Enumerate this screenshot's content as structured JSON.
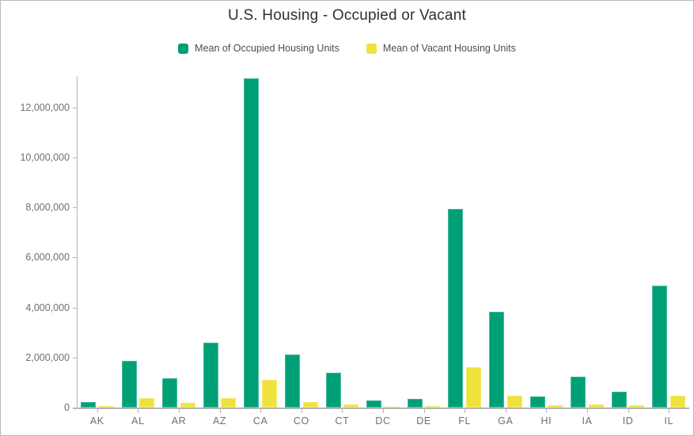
{
  "title": "U.S. Housing - Occupied or Vacant",
  "colors": {
    "occupied": "#00a077",
    "vacant": "#efe23d",
    "axis": "#b5b5b5",
    "tick_label": "#6f6f6f",
    "title_text": "#2f2f2f",
    "legend_text": "#4c4c4c",
    "background": "#ffffff",
    "border": "#b4babf"
  },
  "legend": {
    "items": [
      {
        "key": "occupied",
        "label": "Mean of Occupied Housing Units",
        "color": "#00a077"
      },
      {
        "key": "vacant",
        "label": "Mean of Vacant Housing Units",
        "color": "#efe23d"
      }
    ]
  },
  "chart_data": {
    "type": "bar",
    "title": "U.S. Housing - Occupied or Vacant",
    "xlabel": "",
    "ylabel": "",
    "grid": false,
    "legend_position": "top",
    "ylim": [
      0,
      13250000
    ],
    "yticks": [
      0,
      2000000,
      4000000,
      6000000,
      8000000,
      10000000,
      12000000
    ],
    "ytick_labels": [
      "0",
      "2,000,000",
      "4,000,000",
      "6,000,000",
      "8,000,000",
      "10,000,000",
      "12,000,000"
    ],
    "categories": [
      "AK",
      "AL",
      "AR",
      "AZ",
      "CA",
      "CO",
      "CT",
      "DC",
      "DE",
      "FL",
      "GA",
      "HI",
      "IA",
      "ID",
      "IL"
    ],
    "series": [
      {
        "name": "Mean of Occupied Housing Units",
        "color": "#00a077",
        "values": [
          230000,
          1880000,
          1160000,
          2610000,
          13150000,
          2120000,
          1400000,
          280000,
          350000,
          7950000,
          3840000,
          450000,
          1250000,
          630000,
          4870000
        ]
      },
      {
        "name": "Mean of Vacant Housing Units",
        "color": "#efe23d",
        "values": [
          60000,
          390000,
          200000,
          390000,
          1100000,
          230000,
          125000,
          40000,
          70000,
          1630000,
          490000,
          90000,
          135000,
          90000,
          470000
        ]
      }
    ]
  }
}
